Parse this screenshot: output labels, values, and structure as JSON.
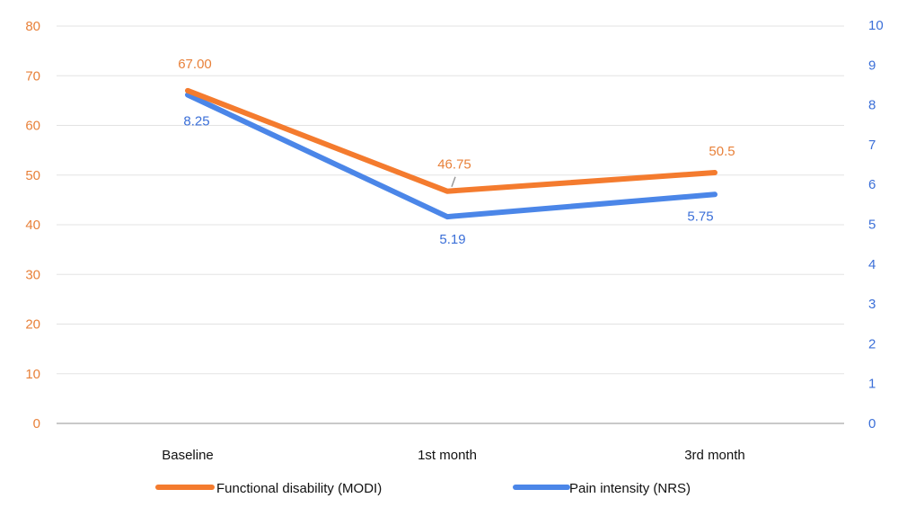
{
  "colors": {
    "left_axis": "#e8813a",
    "right_axis": "#3b6fd8",
    "series_modi": "#f47b2e",
    "series_nrs": "#4b86e8",
    "label_modi": "#e8813a",
    "label_nrs": "#3b6fd8",
    "grid": "#e3e3e3",
    "baseline": "#c9c9c9",
    "text": "#111111"
  },
  "chart_data": {
    "type": "line",
    "categories": [
      "Baseline",
      "1st month",
      "3rd month"
    ],
    "y_left": {
      "min": 0,
      "max": 80,
      "step": 10,
      "ticks": [
        "0",
        "10",
        "20",
        "30",
        "40",
        "50",
        "60",
        "70",
        "80"
      ]
    },
    "y_right": {
      "min": 0,
      "max": 10,
      "step": 1,
      "ticks": [
        "0",
        "1",
        "2",
        "3",
        "4",
        "5",
        "6",
        "7",
        "8",
        "9",
        "10"
      ]
    },
    "grid": true,
    "legend_position": "bottom",
    "series": [
      {
        "name": "Functional disability (MODI)",
        "axis": "left",
        "values": [
          67.0,
          46.75,
          50.5
        ],
        "labels": [
          "67.00",
          "46.75",
          "50.5"
        ]
      },
      {
        "name": "Pain intensity (NRS)",
        "axis": "right",
        "values": [
          8.25,
          5.19,
          5.75
        ],
        "labels": [
          "8.25",
          "5.19",
          "5.75"
        ]
      }
    ]
  }
}
